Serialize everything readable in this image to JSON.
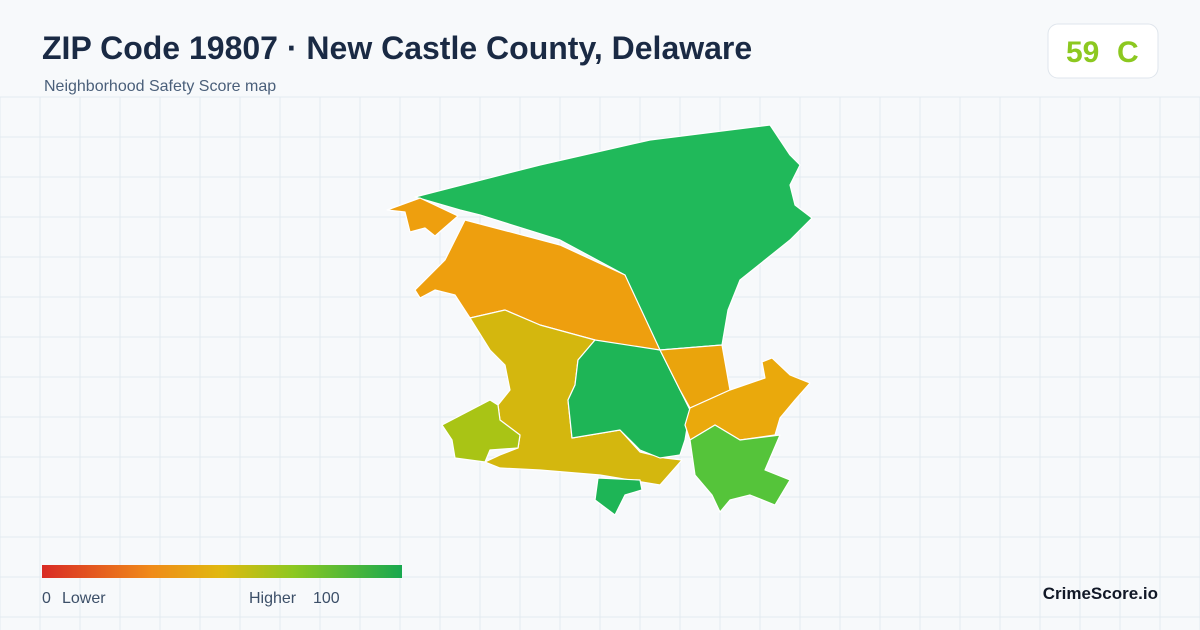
{
  "header": {
    "title": "ZIP Code 19807 · New Castle County, Delaware",
    "subtitle": "Neighborhood Safety Score map"
  },
  "score": {
    "value": "59",
    "grade": "C"
  },
  "legend": {
    "min": "0",
    "min_label": "Lower",
    "max_label": "Higher",
    "max": "100"
  },
  "brand": "CrimeScore.io"
}
